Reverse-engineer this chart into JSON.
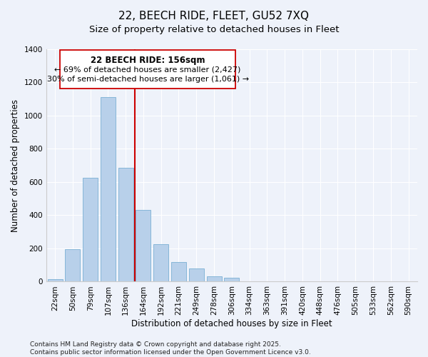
{
  "title": "22, BEECH RIDE, FLEET, GU52 7XQ",
  "subtitle": "Size of property relative to detached houses in Fleet",
  "xlabel": "Distribution of detached houses by size in Fleet",
  "ylabel": "Number of detached properties",
  "bar_labels": [
    "22sqm",
    "50sqm",
    "79sqm",
    "107sqm",
    "136sqm",
    "164sqm",
    "192sqm",
    "221sqm",
    "249sqm",
    "278sqm",
    "306sqm",
    "334sqm",
    "363sqm",
    "391sqm",
    "420sqm",
    "448sqm",
    "476sqm",
    "505sqm",
    "533sqm",
    "562sqm",
    "590sqm"
  ],
  "bar_values": [
    15,
    195,
    625,
    1110,
    685,
    430,
    225,
    120,
    80,
    30,
    25,
    0,
    0,
    0,
    0,
    0,
    0,
    0,
    0,
    0,
    0
  ],
  "bar_color": "#b8d0ea",
  "bar_edge_color": "#7aafd4",
  "vline_x_index": 4.5,
  "annotation_text_line1": "22 BEECH RIDE: 156sqm",
  "annotation_text_line2": "← 69% of detached houses are smaller (2,427)",
  "annotation_text_line3": "30% of semi-detached houses are larger (1,061) →",
  "vline_color": "#cc0000",
  "box_edge_color": "#cc0000",
  "ylim": [
    0,
    1400
  ],
  "yticks": [
    0,
    200,
    400,
    600,
    800,
    1000,
    1200,
    1400
  ],
  "footnote_line1": "Contains HM Land Registry data © Crown copyright and database right 2025.",
  "footnote_line2": "Contains public sector information licensed under the Open Government Licence v3.0.",
  "bg_color": "#eef2fa",
  "grid_color": "#ffffff",
  "title_fontsize": 11,
  "subtitle_fontsize": 9.5,
  "axis_label_fontsize": 8.5,
  "tick_fontsize": 7.5,
  "annotation_fontsize": 8,
  "footnote_fontsize": 6.5
}
